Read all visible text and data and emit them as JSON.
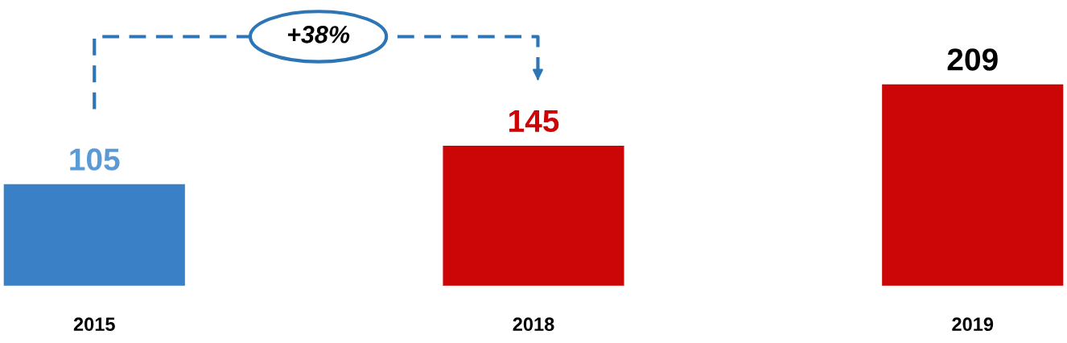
{
  "chart_data": {
    "type": "bar",
    "categories": [
      "2015",
      "2018",
      "2019"
    ],
    "values": [
      105,
      145,
      209
    ],
    "colors": [
      "#3a80c6",
      "#cc0606",
      "#cc0606"
    ],
    "data_labels": true,
    "annotations": [
      "+38%"
    ],
    "grid": false
  }
}
